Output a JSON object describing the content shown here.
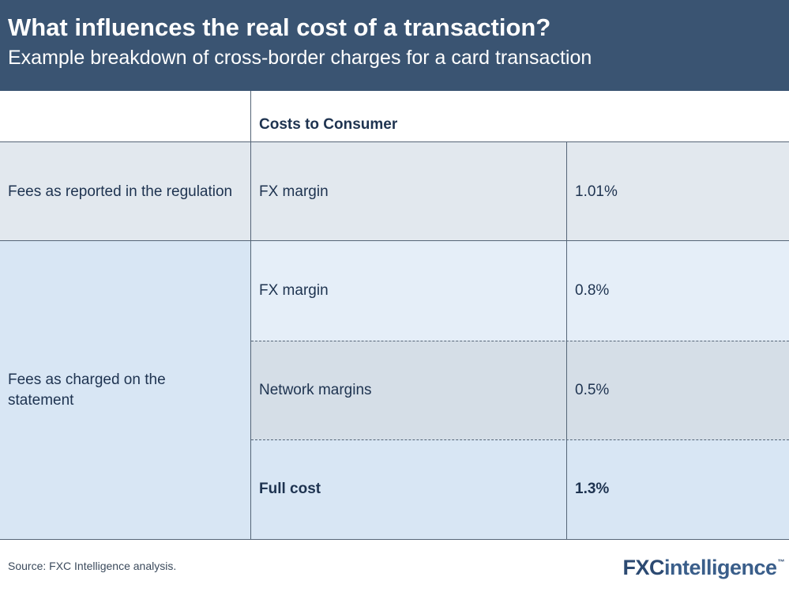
{
  "header": {
    "title": "What influences the real cost of a transaction?",
    "subtitle": "Example breakdown of cross-border charges for a card transaction"
  },
  "table": {
    "column_header": "Costs to Consumer",
    "groups": [
      {
        "label": "Fees as reported in the regulation",
        "rows": [
          {
            "item": "FX margin",
            "value": "1.01%"
          }
        ]
      },
      {
        "label": "Fees as charged on the statement",
        "rows": [
          {
            "item": "FX margin",
            "value": "0.8%"
          },
          {
            "item": "Network margins",
            "value": "0.5%"
          },
          {
            "item": "Full cost",
            "value": "1.3%"
          }
        ]
      }
    ]
  },
  "footer": {
    "source": "Source: FXC Intelligence analysis.",
    "logo_part1": "FXC",
    "logo_part2": "intelligence",
    "logo_tm": "™"
  },
  "colors": {
    "header_bg": "#3a5472",
    "row_regulation": "#e2e8ee",
    "group_statement": "#d8e6f4",
    "row_fx_statement": "#e5eef8",
    "row_network": "#d5dee7",
    "row_full_cost": "#d8e6f4"
  }
}
